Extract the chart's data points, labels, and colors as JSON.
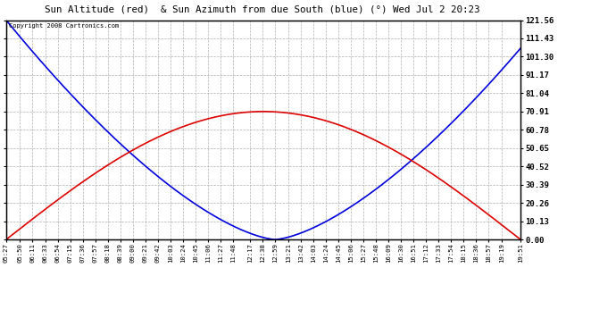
{
  "title": "Sun Altitude (red)  & Sun Azimuth from due South (blue) (°) Wed Jul 2 20:23",
  "copyright": "Copyright 2008 Cartronics.com",
  "bg_color": "#ffffff",
  "plot_bg_color": "#ffffff",
  "grid_color": "#b0b0b0",
  "blue_color": "#0000dd",
  "red_color": "#dd0000",
  "y_ticks": [
    0.0,
    10.13,
    20.26,
    30.39,
    40.52,
    50.65,
    60.78,
    70.91,
    81.04,
    91.17,
    101.3,
    111.43,
    121.56
  ],
  "x_labels": [
    "05:27",
    "05:50",
    "06:11",
    "06:33",
    "06:54",
    "07:15",
    "07:36",
    "07:57",
    "08:18",
    "08:39",
    "09:00",
    "09:21",
    "09:42",
    "10:03",
    "10:24",
    "10:45",
    "11:06",
    "11:27",
    "11:48",
    "12:17",
    "12:38",
    "12:59",
    "13:21",
    "13:42",
    "14:03",
    "14:24",
    "14:45",
    "15:06",
    "15:27",
    "15:48",
    "16:09",
    "16:30",
    "16:51",
    "17:12",
    "17:33",
    "17:54",
    "18:15",
    "18:36",
    "18:57",
    "19:19",
    "19:51"
  ],
  "n_points": 500,
  "sunrise_hour": 5.45,
  "sunset_hour": 19.85,
  "solar_noon": 12.98,
  "max_altitude": 70.91,
  "max_azimuth": 121.56,
  "azimuth_power": 1.5
}
